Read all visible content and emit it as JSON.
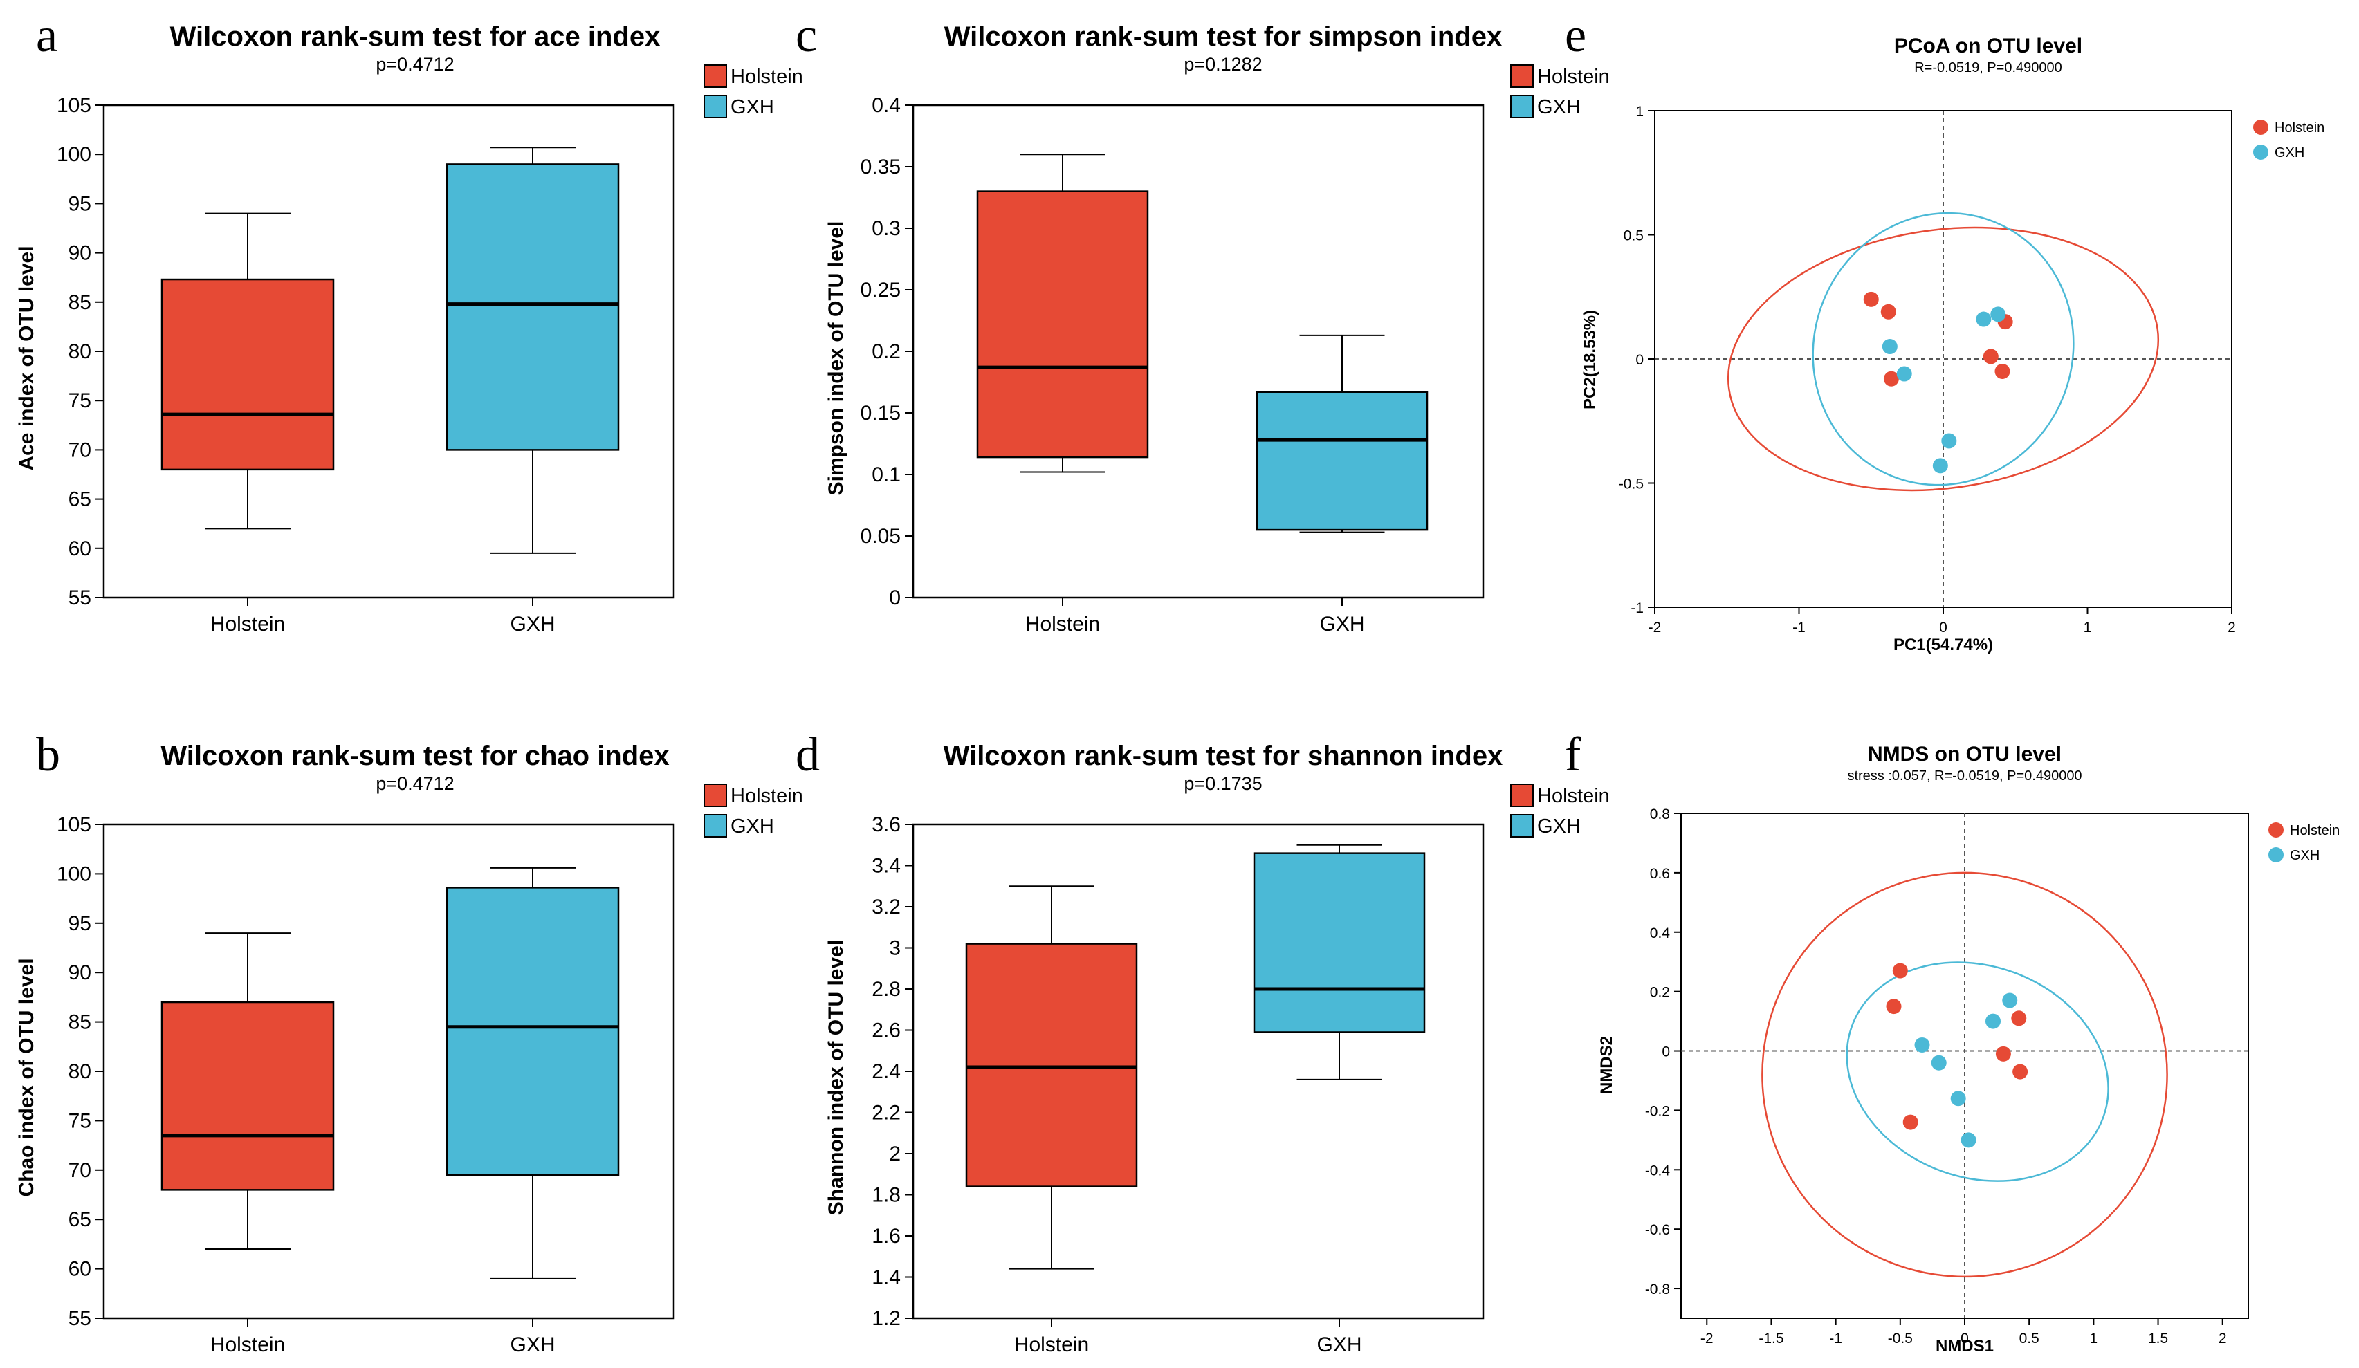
{
  "colors": {
    "holstein": "#e64a35",
    "gxh": "#4bb9d6"
  },
  "chart_data": [
    {
      "id": "a",
      "type": "box",
      "letter": "a",
      "title": "Wilcoxon rank-sum test for ace index",
      "subtitle": "p=0.4712",
      "xlabel": "",
      "ylabel": "Ace index of OTU level",
      "ylim": [
        55,
        105
      ],
      "yticks": [
        55,
        60,
        65,
        70,
        75,
        80,
        85,
        90,
        95,
        100,
        105
      ],
      "categories": [
        "Holstein",
        "GXH"
      ],
      "legend": [
        "Holstein",
        "GXH"
      ],
      "boxes": [
        {
          "name": "Holstein",
          "min": 62,
          "q1": 68,
          "median": 73.6,
          "q3": 87.3,
          "max": 94
        },
        {
          "name": "GXH",
          "min": 59.5,
          "q1": 70,
          "median": 84.8,
          "q3": 99,
          "max": 100.7
        }
      ]
    },
    {
      "id": "b",
      "type": "box",
      "letter": "b",
      "title": "Wilcoxon rank-sum test for chao index",
      "subtitle": "p=0.4712",
      "xlabel": "",
      "ylabel": "Chao index of OTU level",
      "ylim": [
        55,
        105
      ],
      "yticks": [
        55,
        60,
        65,
        70,
        75,
        80,
        85,
        90,
        95,
        100,
        105
      ],
      "categories": [
        "Holstein",
        "GXH"
      ],
      "legend": [
        "Holstein",
        "GXH"
      ],
      "boxes": [
        {
          "name": "Holstein",
          "min": 62,
          "q1": 68,
          "median": 73.5,
          "q3": 87,
          "max": 94
        },
        {
          "name": "GXH",
          "min": 59,
          "q1": 69.5,
          "median": 84.5,
          "q3": 98.6,
          "max": 100.6
        }
      ]
    },
    {
      "id": "c",
      "type": "box",
      "letter": "c",
      "title": "Wilcoxon rank-sum test for simpson index",
      "subtitle": "p=0.1282",
      "xlabel": "",
      "ylabel": "Simpson index of OTU level",
      "ylim": [
        0,
        0.4
      ],
      "yticks": [
        0,
        0.05,
        0.1,
        0.15,
        0.2,
        0.25,
        0.3,
        0.35,
        0.4
      ],
      "categories": [
        "Holstein",
        "GXH"
      ],
      "legend": [
        "Holstein",
        "GXH"
      ],
      "boxes": [
        {
          "name": "Holstein",
          "min": 0.102,
          "q1": 0.114,
          "median": 0.187,
          "q3": 0.33,
          "max": 0.36
        },
        {
          "name": "GXH",
          "min": 0.053,
          "q1": 0.055,
          "median": 0.128,
          "q3": 0.167,
          "max": 0.213
        }
      ]
    },
    {
      "id": "d",
      "type": "box",
      "letter": "d",
      "title": "Wilcoxon rank-sum test for shannon index",
      "subtitle": "p=0.1735",
      "xlabel": "",
      "ylabel": "Shannon index of OTU level",
      "ylim": [
        1.2,
        3.6
      ],
      "yticks": [
        1.2,
        1.4,
        1.6,
        1.8,
        2,
        2.2,
        2.4,
        2.6,
        2.8,
        3,
        3.2,
        3.4,
        3.6
      ],
      "categories": [
        "Holstein",
        "GXH"
      ],
      "legend": [
        "Holstein",
        "GXH"
      ],
      "boxes": [
        {
          "name": "Holstein",
          "min": 1.44,
          "q1": 1.84,
          "median": 2.42,
          "q3": 3.02,
          "max": 3.3
        },
        {
          "name": "GXH",
          "min": 2.36,
          "q1": 2.59,
          "median": 2.8,
          "q3": 3.46,
          "max": 3.5
        }
      ]
    },
    {
      "id": "e",
      "type": "scatter",
      "letter": "e",
      "title": "PCoA on OTU level",
      "subtitle": "R=-0.0519, P=0.490000",
      "xlabel": "PC1(54.74%)",
      "ylabel": "PC2(18.53%)",
      "xlim": [
        -2,
        2
      ],
      "ylim": [
        -1,
        1
      ],
      "xticks": [
        -2,
        -1,
        0,
        1,
        2
      ],
      "yticks": [
        -1,
        -0.5,
        0,
        0.5,
        1
      ],
      "legend": [
        "Holstein",
        "GXH"
      ],
      "series": [
        {
          "name": "Holstein",
          "points": [
            [
              -0.5,
              0.24
            ],
            [
              -0.38,
              0.19
            ],
            [
              -0.36,
              -0.08
            ],
            [
              0.43,
              0.15
            ],
            [
              0.33,
              0.01
            ],
            [
              0.41,
              -0.05
            ]
          ]
        },
        {
          "name": "GXH",
          "points": [
            [
              -0.37,
              0.05
            ],
            [
              -0.27,
              -0.06
            ],
            [
              0.28,
              0.16
            ],
            [
              0.38,
              0.18
            ],
            [
              0.04,
              -0.33
            ],
            [
              -0.02,
              -0.43
            ]
          ]
        }
      ],
      "ellipses": [
        {
          "name": "Holstein",
          "cx": 0,
          "cy": 0,
          "rx": 1.5,
          "ry": 0.52,
          "angle": 8
        },
        {
          "name": "GXH",
          "cx": 0,
          "cy": 0.04,
          "rx": 0.95,
          "ry": 0.52,
          "angle": 68
        }
      ]
    },
    {
      "id": "f",
      "type": "scatter",
      "letter": "f",
      "title": "NMDS on OTU level",
      "subtitle": "stress :0.057, R=-0.0519, P=0.490000",
      "xlabel": "NMDS1",
      "ylabel": "NMDS2",
      "xlim": [
        -2.2,
        2.2
      ],
      "ylim": [
        -0.9,
        0.8
      ],
      "xticks": [
        -2,
        -1.5,
        -1,
        -0.5,
        0,
        0.5,
        1,
        1.5,
        2
      ],
      "yticks": [
        -0.8,
        -0.6,
        -0.4,
        -0.2,
        0,
        0.2,
        0.4,
        0.6,
        0.8
      ],
      "legend": [
        "Holstein",
        "GXH"
      ],
      "series": [
        {
          "name": "Holstein",
          "points": [
            [
              -0.55,
              0.15
            ],
            [
              -0.5,
              0.27
            ],
            [
              -0.42,
              -0.24
            ],
            [
              0.3,
              -0.01
            ],
            [
              0.42,
              0.11
            ],
            [
              0.43,
              -0.07
            ]
          ]
        },
        {
          "name": "GXH",
          "points": [
            [
              -0.33,
              0.02
            ],
            [
              -0.2,
              -0.04
            ],
            [
              0.22,
              0.1
            ],
            [
              0.35,
              0.17
            ],
            [
              -0.05,
              -0.16
            ],
            [
              0.03,
              -0.3
            ]
          ]
        }
      ],
      "ellipses": [
        {
          "name": "Holstein",
          "cx": 0,
          "cy": -0.08,
          "rx": 1.57,
          "ry": 0.68,
          "angle": -8
        },
        {
          "name": "GXH",
          "cx": 0.1,
          "cy": -0.07,
          "rx": 0.82,
          "ry": 0.45,
          "angle": 70
        }
      ]
    }
  ]
}
